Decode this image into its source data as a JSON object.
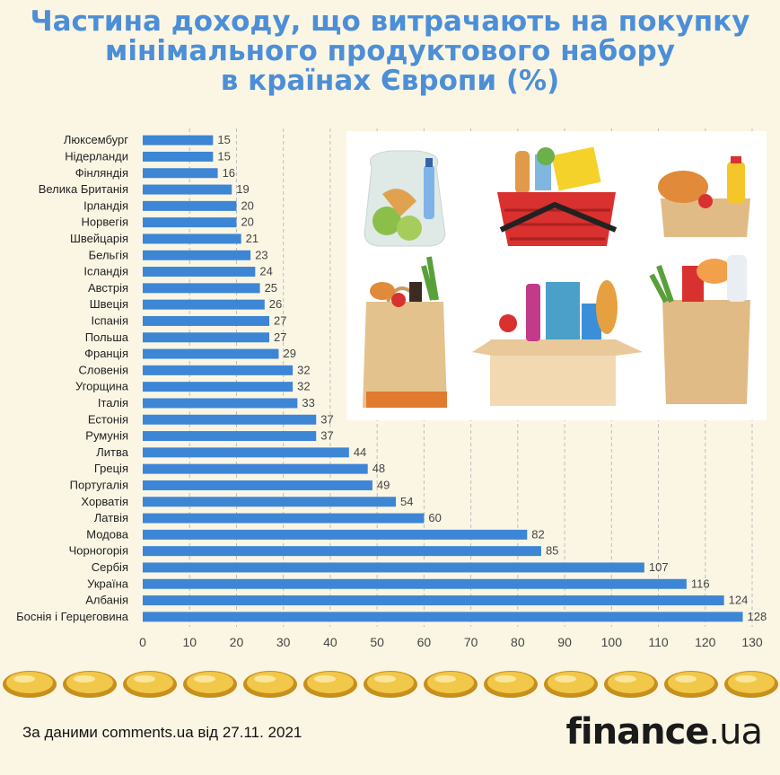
{
  "title_lines": [
    "Частина доходу, що витрачають на покупку",
    "мінімального продуктового набору",
    "в країнах Європи (%)"
  ],
  "chart_data": {
    "type": "bar",
    "orientation": "horizontal",
    "categories": [
      "Люксембург",
      "Нідерланди",
      "Фінляндія",
      "Велика Британія",
      "Ірландія",
      "Норвегія",
      "Швейцарія",
      "Бельгія",
      "Ісландія",
      "Австрія",
      "Швеція",
      "Іспанія",
      "Польша",
      "Франція",
      "Словенія",
      "Угорщина",
      "Італія",
      "Естонія",
      "Румунія",
      "Литва",
      "Греція",
      "Португалія",
      "Хорватія",
      "Латвія",
      "Модова",
      "Чорногорія",
      "Сербія",
      "Україна",
      "Албанія",
      "Боснія і Герцеговина"
    ],
    "values": [
      15,
      15,
      16,
      19,
      20,
      20,
      21,
      23,
      24,
      25,
      26,
      27,
      27,
      29,
      32,
      32,
      33,
      37,
      37,
      44,
      48,
      49,
      54,
      60,
      82,
      85,
      107,
      116,
      124,
      128
    ],
    "xlim": [
      0,
      130
    ],
    "xticks": [
      0,
      10,
      20,
      30,
      40,
      50,
      60,
      70,
      80,
      90,
      100,
      110,
      120,
      130
    ],
    "grid": "vertical dashed",
    "bar_color": "#3d86d6"
  },
  "illustration": "grocery-bags-illustration",
  "coin_icon": "gold-coin-icon",
  "source_text": "За даними comments.ua від 27.11. 2021",
  "brand": {
    "name": "finance",
    "domain": ".ua"
  }
}
